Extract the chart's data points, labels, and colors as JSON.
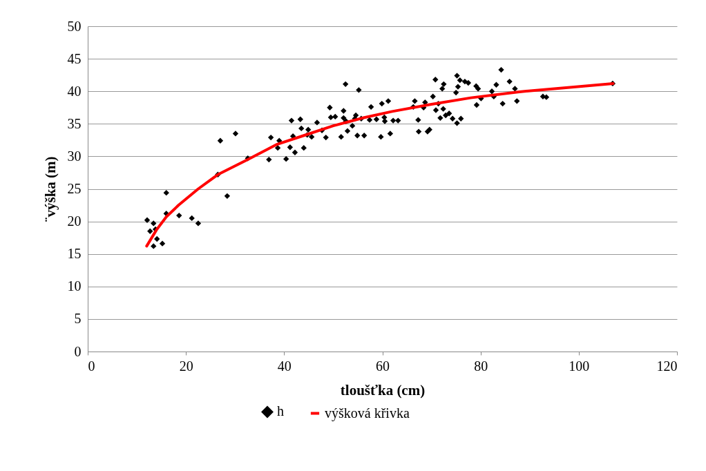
{
  "chart_data": {
    "type": "scatter",
    "xlabel": "tloušťka (cm)",
    "ylabel": "¨výška (m)",
    "xlim": [
      0,
      120
    ],
    "xticks": [
      0,
      20,
      40,
      60,
      80,
      100,
      120
    ],
    "ylim": [
      0,
      50
    ],
    "yticks": [
      0,
      5,
      10,
      15,
      20,
      25,
      30,
      35,
      40,
      45,
      50
    ],
    "grid": "y",
    "legend": "bottom",
    "series": [
      {
        "name": "h",
        "marker": "diamond",
        "color": "#000000",
        "x": [
          12.1,
          12.7,
          13.4,
          13.4,
          13.8,
          14.1,
          15.2,
          16,
          16,
          18.6,
          21.2,
          22.5,
          26.5,
          27,
          28.4,
          30.1,
          32.6,
          36.9,
          37.3,
          38.7,
          39,
          40.4,
          41.2,
          41.5,
          41.8,
          42.2,
          43.3,
          43.5,
          44,
          44.9,
          44.7,
          45.6,
          46.7,
          47.7,
          48.5,
          49.3,
          49.5,
          50.4,
          51.6,
          52.1,
          52.1,
          52.5,
          52.6,
          52.9,
          53.9,
          54.4,
          54.6,
          54.9,
          55.2,
          55.7,
          56.3,
          57.4,
          57.7,
          58.8,
          59.7,
          59.9,
          60.4,
          60.5,
          61.2,
          61.6,
          62.2,
          63.2,
          66.3,
          66.6,
          67.3,
          67.4,
          68.4,
          68.7,
          69.2,
          69.6,
          70.3,
          70.8,
          70.9,
          71.4,
          71.8,
          72.2,
          72.5,
          72.4,
          72.9,
          73.6,
          74.3,
          75.2,
          75,
          75.4,
          75.8,
          75.2,
          76,
          76.8,
          77.5,
          79.1,
          79.5,
          79.2,
          80.1,
          82.3,
          82.7,
          83.2,
          84.2,
          84.5,
          85.9,
          87,
          87.4,
          92.7,
          93.4,
          106.9
        ],
        "values": [
          20.2,
          18.5,
          16.2,
          19.7,
          18.8,
          17.3,
          16.6,
          24.4,
          21.2,
          20.9,
          20.5,
          19.7,
          27.2,
          32.4,
          23.9,
          33.5,
          29.7,
          29.5,
          32.9,
          31.3,
          32.4,
          29.6,
          31.4,
          35.5,
          33.1,
          30.6,
          35.7,
          34.3,
          31.3,
          34.1,
          33.3,
          33,
          35.2,
          34,
          32.9,
          37.5,
          36,
          36.1,
          33,
          37,
          35.9,
          41.1,
          35.4,
          33.9,
          34.7,
          35.8,
          36.3,
          33.2,
          40.2,
          35.8,
          33.2,
          35.6,
          37.6,
          35.7,
          33,
          38.1,
          36,
          35.4,
          38.5,
          33.5,
          35.5,
          35.5,
          37.6,
          38.5,
          35.6,
          33.8,
          37.5,
          38.3,
          33.8,
          34.1,
          39.2,
          41.8,
          37.1,
          38.1,
          35.9,
          40.4,
          41.1,
          37.3,
          36.3,
          36.6,
          35.8,
          42.4,
          39.8,
          40.7,
          41.7,
          35.1,
          35.8,
          41.5,
          41.3,
          40.8,
          40.4,
          37.9,
          38.9,
          40,
          39.2,
          41,
          43.3,
          38.1,
          41.5,
          40.4,
          38.5,
          39.2,
          39.1,
          41.2
        ]
      },
      {
        "name": "výšková křivka",
        "type": "line",
        "marker": "none",
        "color": "#ff0000",
        "x": [
          12,
          14,
          16,
          18.5,
          22.5,
          26.5,
          32.8,
          38.4,
          44,
          50,
          56,
          62,
          70,
          78,
          87.6,
          95,
          107
        ],
        "values": [
          16.2,
          18.7,
          20.7,
          22.5,
          25,
          27.2,
          29.6,
          31.8,
          33.2,
          34.7,
          35.9,
          36.9,
          38,
          39,
          39.9,
          40.4,
          41.2
        ]
      }
    ]
  }
}
